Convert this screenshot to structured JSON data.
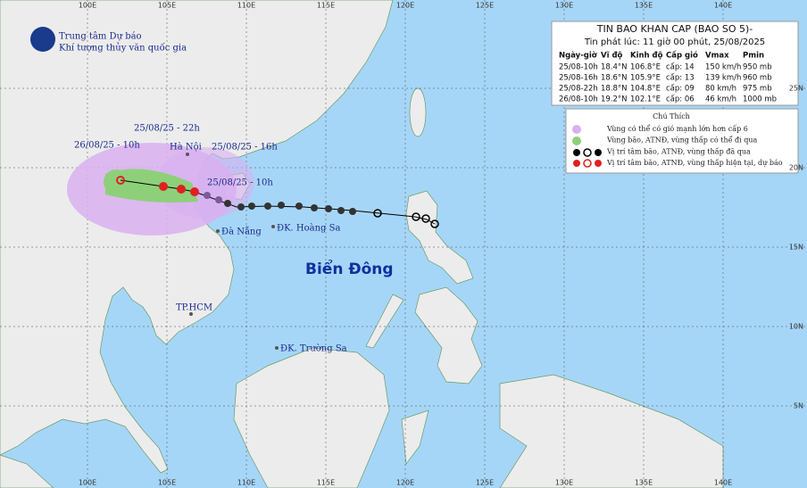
{
  "header": {
    "org_line1": "Trung tâm Dự báo",
    "org_line2": "Khí tượng thủy văn quốc gia"
  },
  "bulletin": {
    "title": "TIN BAO KHAN CAP (BAO SO 5)-",
    "issued": "Tin phát lúc: 11 giờ 00 phút, 25/08/2025",
    "columns": [
      "Ngày-giờ",
      "Vĩ độ",
      "Kinh độ",
      "Cấp gió",
      "Vmax",
      "Pmin"
    ],
    "rows": [
      [
        "25/08-10h",
        "18.4°N",
        "106.8°E",
        "cấp: 14",
        "150 km/h",
        "950 mb"
      ],
      [
        "25/08-16h",
        "18.6°N",
        "105.9°E",
        "cấp: 13",
        "139 km/h",
        "960 mb"
      ],
      [
        "25/08-22h",
        "18.8°N",
        "104.8°E",
        "cấp: 09",
        "80 km/h",
        "975 mb"
      ],
      [
        "26/08-10h",
        "19.2°N",
        "102.1°E",
        "cấp: 06",
        "46 km/h",
        "1000 mb"
      ]
    ]
  },
  "legend": {
    "title": "Chú Thích",
    "items": [
      "Vùng có thể có gió mạnh lớn hơn cấp 6",
      "Vùng bão, ATNĐ, vùng thấp có thể đi qua",
      "Vị trí tâm bão, ATNĐ, vùng thấp đã qua",
      "Vị trí tâm bão, ATNĐ, vùng thấp hiện tại, dự báo"
    ]
  },
  "map": {
    "lon_labels": [
      "100E",
      "105E",
      "110E",
      "115E",
      "120E",
      "125E",
      "130E",
      "135E",
      "140E"
    ],
    "lat_labels": [
      "25N",
      "20N",
      "15N",
      "10N",
      "5N"
    ],
    "places": {
      "hanoi": "Hà Nội",
      "danang": "Đà Nẵng",
      "hoangsa": "ĐK. Hoàng Sa",
      "hcm": "TP.HCM",
      "truongsa": "ĐK. Trường Sa"
    },
    "sea": "Biển Đông",
    "times": [
      "25/08/25 - 22h",
      "26/08/25 - 10h",
      "25/08/25 - 16h",
      "25/08/25 - 10h"
    ]
  }
}
